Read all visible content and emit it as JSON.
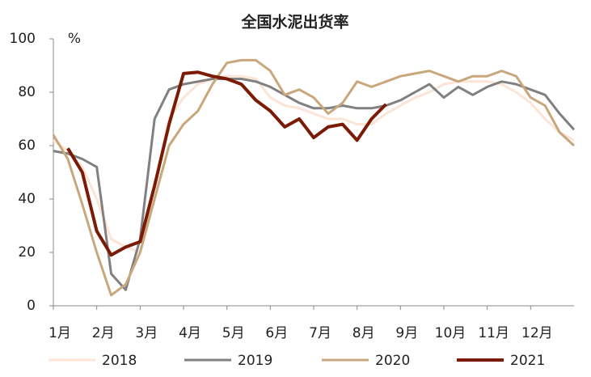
{
  "chart_data": {
    "type": "line",
    "title": "全国水泥出货率",
    "y_unit": "%",
    "x": [
      1,
      1.333,
      1.667,
      2,
      2.333,
      2.667,
      3,
      3.333,
      3.667,
      4,
      4.333,
      4.667,
      5,
      5.333,
      5.667,
      6,
      6.333,
      6.667,
      7,
      7.333,
      7.667,
      8,
      8.333,
      8.667,
      9,
      9.333,
      9.667,
      10,
      10.333,
      10.667,
      11,
      11.333,
      11.667,
      12,
      12.333,
      12.667,
      13
    ],
    "xlim": [
      1,
      13
    ],
    "xticks": [
      {
        "value": 1,
        "label": "1月"
      },
      {
        "value": 2,
        "label": "2月"
      },
      {
        "value": 3,
        "label": "3月"
      },
      {
        "value": 4,
        "label": "4月"
      },
      {
        "value": 5,
        "label": "5月"
      },
      {
        "value": 6,
        "label": "6月"
      },
      {
        "value": 7,
        "label": "7月"
      },
      {
        "value": 8,
        "label": "8月"
      },
      {
        "value": 9,
        "label": "9月"
      },
      {
        "value": 10,
        "label": "10月"
      },
      {
        "value": 11,
        "label": "11月"
      },
      {
        "value": 12,
        "label": "12月"
      }
    ],
    "ylim": [
      0,
      100
    ],
    "yticks": [
      0,
      20,
      40,
      60,
      80,
      100
    ],
    "grid": false,
    "series": [
      {
        "name": "2018",
        "color": "#fce4d6",
        "values": [
          62,
          58,
          52,
          40,
          25,
          22,
          20,
          45,
          70,
          78,
          83,
          85,
          86,
          86,
          85,
          78,
          75,
          74,
          72,
          70,
          70,
          68,
          68,
          72,
          75,
          78,
          80,
          83,
          84,
          84,
          84,
          83,
          80,
          76,
          70,
          65,
          62
        ]
      },
      {
        "name": "2019",
        "color": "#808080",
        "values": [
          58,
          57,
          55,
          52,
          12,
          6,
          25,
          70,
          81,
          83,
          84,
          85,
          85,
          85,
          84,
          82,
          79,
          76,
          74,
          74,
          75,
          74,
          74,
          75,
          77,
          80,
          83,
          78,
          82,
          79,
          82,
          84,
          83,
          81,
          79,
          72,
          66
        ]
      },
      {
        "name": "2020",
        "color": "#c9a77c",
        "values": [
          64,
          55,
          38,
          20,
          4,
          8,
          20,
          40,
          60,
          68,
          73,
          83,
          91,
          92,
          92,
          88,
          79,
          81,
          78,
          72,
          76,
          84,
          82,
          84,
          86,
          87,
          88,
          86,
          84,
          86,
          86,
          88,
          86,
          78,
          75,
          65,
          60
        ]
      },
      {
        "name": "2021",
        "color": "#7b1a05",
        "values": [
          null,
          59,
          50,
          28,
          19,
          22,
          24,
          45,
          68,
          87,
          87.5,
          86,
          85,
          83,
          77,
          73,
          67,
          70,
          63,
          67,
          68,
          62,
          70,
          75.5,
          null,
          null,
          null,
          null,
          null,
          null,
          null,
          null,
          null,
          null,
          null,
          null,
          null
        ]
      }
    ]
  }
}
